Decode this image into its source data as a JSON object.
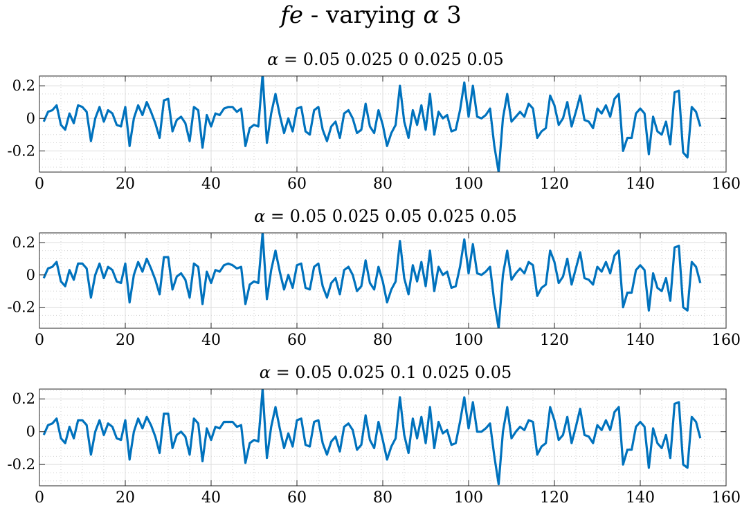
{
  "figure": {
    "title_var": "fe",
    "title_text": " - varying ",
    "title_greek": "α",
    "title_suffix": " 3"
  },
  "chart_data": [
    {
      "type": "line",
      "title": "α = 0.05 0.025 0 0.025 0.05",
      "xlim": [
        0,
        160
      ],
      "ylim": [
        -0.33,
        0.26
      ],
      "xticks": [
        0,
        20,
        40,
        60,
        80,
        100,
        120,
        140,
        160
      ],
      "yticks": [
        -0.2,
        0,
        0.2
      ],
      "ytick_labels": [
        "-0.2",
        "0",
        "0.2"
      ],
      "grid": true,
      "minor_grid": true,
      "series": [
        {
          "color": "#0072BD",
          "x": [
            1,
            2,
            3,
            4,
            5,
            6,
            7,
            8,
            9,
            10,
            11,
            12,
            13,
            14,
            15,
            16,
            17,
            18,
            19,
            20,
            21,
            22,
            23,
            24,
            25,
            26,
            27,
            28,
            29,
            30,
            31,
            32,
            33,
            34,
            35,
            36,
            37,
            38,
            39,
            40,
            41,
            42,
            43,
            44,
            45,
            46,
            47,
            48,
            49,
            50,
            51,
            52,
            53,
            54,
            55,
            56,
            57,
            58,
            59,
            60,
            61,
            62,
            63,
            64,
            65,
            66,
            67,
            68,
            69,
            70,
            71,
            72,
            73,
            74,
            75,
            76,
            77,
            78,
            79,
            80,
            81,
            82,
            83,
            84,
            85,
            86,
            87,
            88,
            89,
            90,
            91,
            92,
            93,
            94,
            95,
            96,
            97,
            98,
            99,
            100,
            101,
            102,
            103,
            104,
            105,
            106,
            107,
            108,
            109,
            110,
            111,
            112,
            113,
            114,
            115,
            116,
            117,
            118,
            119,
            120,
            121,
            122,
            123,
            124,
            125,
            126,
            127,
            128,
            129,
            130,
            131,
            132,
            133,
            134,
            135,
            136,
            137,
            138,
            139,
            140,
            141,
            142,
            143,
            144,
            145,
            146,
            147,
            148,
            149,
            150,
            151,
            152,
            153,
            154
          ],
          "y": [
            -0.02,
            0.04,
            0.05,
            0.08,
            -0.04,
            -0.07,
            0.03,
            -0.03,
            0.08,
            0.07,
            0.04,
            -0.14,
            0.0,
            0.07,
            -0.02,
            0.05,
            0.03,
            -0.04,
            -0.05,
            0.07,
            -0.17,
            0.0,
            0.08,
            0.02,
            0.1,
            0.04,
            -0.03,
            -0.12,
            0.11,
            0.12,
            -0.08,
            -0.01,
            0.01,
            -0.03,
            -0.14,
            0.07,
            0.05,
            -0.18,
            0.02,
            -0.05,
            0.03,
            0.02,
            0.06,
            0.07,
            0.07,
            0.04,
            0.06,
            -0.17,
            -0.06,
            -0.04,
            -0.05,
            0.27,
            -0.15,
            0.03,
            0.15,
            0.02,
            -0.09,
            0.0,
            -0.08,
            0.06,
            0.07,
            -0.08,
            -0.1,
            0.05,
            0.07,
            -0.07,
            -0.14,
            -0.05,
            -0.02,
            -0.12,
            0.03,
            0.05,
            0.0,
            -0.09,
            -0.07,
            0.09,
            -0.05,
            -0.09,
            0.05,
            -0.04,
            -0.17,
            -0.09,
            -0.04,
            0.2,
            -0.02,
            -0.12,
            0.05,
            -0.04,
            0.08,
            -0.07,
            0.15,
            -0.1,
            0.04,
            0.0,
            0.02,
            -0.08,
            -0.07,
            0.05,
            0.22,
            0.01,
            0.2,
            0.01,
            0.0,
            0.02,
            0.06,
            -0.17,
            -0.33,
            0.0,
            0.15,
            -0.02,
            0.01,
            0.04,
            0.01,
            0.09,
            0.06,
            -0.12,
            -0.08,
            -0.06,
            0.14,
            0.08,
            -0.04,
            0.0,
            0.1,
            -0.05,
            0.04,
            0.14,
            -0.01,
            -0.02,
            -0.06,
            0.06,
            0.03,
            0.08,
            0.01,
            0.12,
            0.15,
            -0.2,
            -0.12,
            -0.12,
            0.03,
            0.06,
            0.03,
            -0.22,
            0.01,
            -0.08,
            -0.1,
            -0.02,
            -0.16,
            0.16,
            0.17,
            -0.21,
            -0.24,
            0.07,
            0.04,
            -0.05
          ]
        }
      ]
    },
    {
      "type": "line",
      "title": "α = 0.05 0.025 0.05 0.025 0.05",
      "xlim": [
        0,
        160
      ],
      "ylim": [
        -0.33,
        0.26
      ],
      "xticks": [
        0,
        20,
        40,
        60,
        80,
        100,
        120,
        140,
        160
      ],
      "yticks": [
        -0.2,
        0,
        0.2
      ],
      "ytick_labels": [
        "-0.2",
        "0",
        "0.2"
      ],
      "grid": true,
      "minor_grid": true,
      "series": [
        {
          "color": "#0072BD",
          "x": [
            1,
            2,
            3,
            4,
            5,
            6,
            7,
            8,
            9,
            10,
            11,
            12,
            13,
            14,
            15,
            16,
            17,
            18,
            19,
            20,
            21,
            22,
            23,
            24,
            25,
            26,
            27,
            28,
            29,
            30,
            31,
            32,
            33,
            34,
            35,
            36,
            37,
            38,
            39,
            40,
            41,
            42,
            43,
            44,
            45,
            46,
            47,
            48,
            49,
            50,
            51,
            52,
            53,
            54,
            55,
            56,
            57,
            58,
            59,
            60,
            61,
            62,
            63,
            64,
            65,
            66,
            67,
            68,
            69,
            70,
            71,
            72,
            73,
            74,
            75,
            76,
            77,
            78,
            79,
            80,
            81,
            82,
            83,
            84,
            85,
            86,
            87,
            88,
            89,
            90,
            91,
            92,
            93,
            94,
            95,
            96,
            97,
            98,
            99,
            100,
            101,
            102,
            103,
            104,
            105,
            106,
            107,
            108,
            109,
            110,
            111,
            112,
            113,
            114,
            115,
            116,
            117,
            118,
            119,
            120,
            121,
            122,
            123,
            124,
            125,
            126,
            127,
            128,
            129,
            130,
            131,
            132,
            133,
            134,
            135,
            136,
            137,
            138,
            139,
            140,
            141,
            142,
            143,
            144,
            145,
            146,
            147,
            148,
            149,
            150,
            151,
            152,
            153,
            154
          ],
          "y": [
            -0.02,
            0.04,
            0.05,
            0.08,
            -0.04,
            -0.07,
            0.03,
            -0.03,
            0.07,
            0.07,
            0.04,
            -0.14,
            0.0,
            0.07,
            -0.02,
            0.05,
            0.03,
            -0.04,
            -0.05,
            0.07,
            -0.17,
            0.0,
            0.08,
            0.02,
            0.1,
            0.04,
            -0.03,
            -0.12,
            0.11,
            0.11,
            -0.09,
            -0.01,
            0.01,
            -0.03,
            -0.14,
            0.07,
            0.05,
            -0.18,
            0.02,
            -0.05,
            0.03,
            0.02,
            0.06,
            0.07,
            0.06,
            0.04,
            0.05,
            -0.18,
            -0.06,
            -0.04,
            -0.05,
            0.26,
            -0.15,
            0.03,
            0.15,
            0.02,
            -0.09,
            0.0,
            -0.08,
            0.06,
            0.07,
            -0.08,
            -0.09,
            0.05,
            0.07,
            -0.07,
            -0.14,
            -0.05,
            -0.02,
            -0.12,
            0.03,
            0.05,
            0.0,
            -0.1,
            -0.07,
            0.09,
            -0.05,
            -0.09,
            0.05,
            -0.04,
            -0.17,
            -0.09,
            -0.04,
            0.21,
            -0.02,
            -0.12,
            0.06,
            -0.04,
            0.08,
            -0.07,
            0.15,
            -0.1,
            0.05,
            0.0,
            0.02,
            -0.08,
            -0.07,
            0.05,
            0.22,
            0.01,
            0.19,
            0.01,
            0.0,
            0.02,
            0.05,
            -0.17,
            -0.33,
            0.0,
            0.15,
            -0.03,
            0.01,
            0.04,
            0.01,
            0.08,
            0.06,
            -0.13,
            -0.08,
            -0.06,
            0.15,
            0.08,
            -0.05,
            -0.01,
            0.1,
            -0.06,
            0.04,
            0.14,
            -0.02,
            -0.03,
            -0.06,
            0.05,
            0.02,
            0.08,
            0.01,
            0.12,
            0.15,
            -0.2,
            -0.11,
            -0.11,
            0.03,
            0.06,
            0.03,
            -0.22,
            0.01,
            -0.08,
            -0.1,
            -0.02,
            -0.16,
            0.17,
            0.18,
            -0.2,
            -0.22,
            0.08,
            0.05,
            -0.05
          ]
        }
      ]
    },
    {
      "type": "line",
      "title": "α = 0.05 0.025 0.1 0.025 0.05",
      "xlim": [
        0,
        160
      ],
      "ylim": [
        -0.33,
        0.26
      ],
      "xticks": [
        0,
        20,
        40,
        60,
        80,
        100,
        120,
        140,
        160
      ],
      "yticks": [
        -0.2,
        0,
        0.2
      ],
      "ytick_labels": [
        "-0.2",
        "0",
        "0.2"
      ],
      "grid": true,
      "minor_grid": true,
      "series": [
        {
          "color": "#0072BD",
          "x": [
            1,
            2,
            3,
            4,
            5,
            6,
            7,
            8,
            9,
            10,
            11,
            12,
            13,
            14,
            15,
            16,
            17,
            18,
            19,
            20,
            21,
            22,
            23,
            24,
            25,
            26,
            27,
            28,
            29,
            30,
            31,
            32,
            33,
            34,
            35,
            36,
            37,
            38,
            39,
            40,
            41,
            42,
            43,
            44,
            45,
            46,
            47,
            48,
            49,
            50,
            51,
            52,
            53,
            54,
            55,
            56,
            57,
            58,
            59,
            60,
            61,
            62,
            63,
            64,
            65,
            66,
            67,
            68,
            69,
            70,
            71,
            72,
            73,
            74,
            75,
            76,
            77,
            78,
            79,
            80,
            81,
            82,
            83,
            84,
            85,
            86,
            87,
            88,
            89,
            90,
            91,
            92,
            93,
            94,
            95,
            96,
            97,
            98,
            99,
            100,
            101,
            102,
            103,
            104,
            105,
            106,
            107,
            108,
            109,
            110,
            111,
            112,
            113,
            114,
            115,
            116,
            117,
            118,
            119,
            120,
            121,
            122,
            123,
            124,
            125,
            126,
            127,
            128,
            129,
            130,
            131,
            132,
            133,
            134,
            135,
            136,
            137,
            138,
            139,
            140,
            141,
            142,
            143,
            144,
            145,
            146,
            147,
            148,
            149,
            150,
            151,
            152,
            153,
            154
          ],
          "y": [
            -0.02,
            0.04,
            0.05,
            0.08,
            -0.04,
            -0.07,
            0.03,
            -0.04,
            0.07,
            0.07,
            0.04,
            -0.14,
            0.0,
            0.07,
            -0.02,
            0.05,
            0.03,
            -0.04,
            -0.05,
            0.07,
            -0.17,
            0.0,
            0.08,
            0.02,
            0.09,
            0.04,
            -0.03,
            -0.13,
            0.11,
            0.11,
            -0.1,
            -0.02,
            0.0,
            -0.03,
            -0.14,
            0.08,
            0.05,
            -0.18,
            0.02,
            -0.05,
            0.03,
            0.02,
            0.06,
            0.06,
            0.06,
            0.03,
            0.04,
            -0.19,
            -0.07,
            -0.05,
            -0.06,
            0.26,
            -0.16,
            0.03,
            0.15,
            0.02,
            -0.1,
            -0.01,
            -0.09,
            0.07,
            0.08,
            -0.08,
            -0.09,
            0.06,
            0.07,
            -0.07,
            -0.14,
            -0.06,
            -0.03,
            -0.12,
            0.03,
            0.05,
            0.01,
            -0.11,
            -0.08,
            0.1,
            -0.05,
            -0.1,
            0.06,
            -0.05,
            -0.17,
            -0.09,
            -0.04,
            0.21,
            -0.02,
            -0.13,
            0.08,
            -0.04,
            0.09,
            -0.07,
            0.15,
            -0.1,
            0.06,
            -0.01,
            0.01,
            -0.08,
            -0.07,
            0.06,
            0.21,
            0.02,
            0.18,
            0.0,
            0.0,
            0.02,
            0.05,
            -0.15,
            -0.32,
            0.0,
            0.15,
            -0.04,
            0.0,
            0.03,
            0.01,
            0.07,
            0.06,
            -0.14,
            -0.09,
            -0.07,
            0.15,
            0.07,
            -0.05,
            -0.02,
            0.09,
            -0.07,
            0.03,
            0.14,
            -0.02,
            -0.03,
            -0.07,
            0.04,
            0.01,
            0.07,
            0.01,
            0.12,
            0.15,
            -0.2,
            -0.11,
            -0.11,
            0.03,
            0.06,
            0.03,
            -0.22,
            0.02,
            -0.07,
            -0.1,
            -0.02,
            -0.16,
            0.17,
            0.18,
            -0.2,
            -0.22,
            0.09,
            0.06,
            -0.04
          ]
        }
      ]
    }
  ]
}
